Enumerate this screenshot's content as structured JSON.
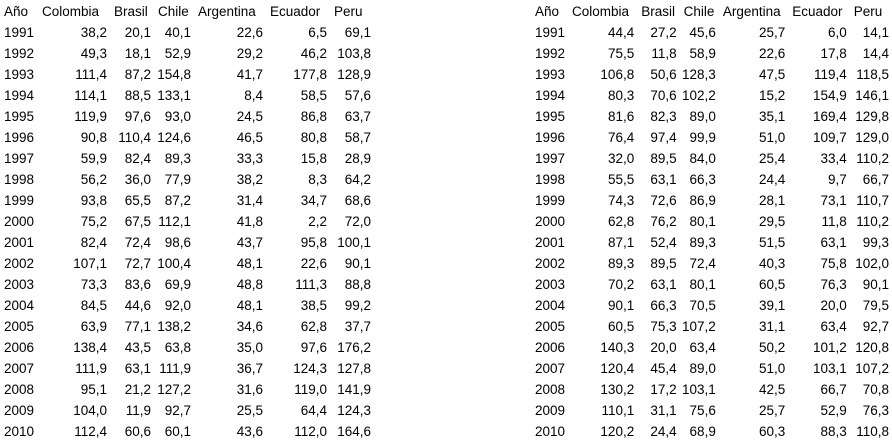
{
  "headers": [
    "Año",
    "Colombia",
    "Brasil",
    "Chile",
    "Argentina",
    "Ecuador",
    "Peru"
  ],
  "left_table": [
    [
      "1991",
      "38,2",
      "20,1",
      "40,1",
      "22,6",
      "6,5",
      "69,1"
    ],
    [
      "1992",
      "49,3",
      "18,1",
      "52,9",
      "29,2",
      "46,2",
      "103,8"
    ],
    [
      "1993",
      "111,4",
      "87,2",
      "154,8",
      "41,7",
      "177,8",
      "128,9"
    ],
    [
      "1994",
      "114,1",
      "88,5",
      "133,1",
      "8,4",
      "58,5",
      "57,6"
    ],
    [
      "1995",
      "119,9",
      "97,6",
      "93,0",
      "24,5",
      "86,8",
      "63,7"
    ],
    [
      "1996",
      "90,8",
      "110,4",
      "124,6",
      "46,5",
      "80,8",
      "58,7"
    ],
    [
      "1997",
      "59,9",
      "82,4",
      "89,3",
      "33,3",
      "15,8",
      "28,9"
    ],
    [
      "1998",
      "56,2",
      "36,0",
      "77,9",
      "38,2",
      "8,3",
      "64,2"
    ],
    [
      "1999",
      "93,8",
      "65,5",
      "87,2",
      "31,4",
      "34,7",
      "68,6"
    ],
    [
      "2000",
      "75,2",
      "67,5",
      "112,1",
      "41,8",
      "2,2",
      "72,0"
    ],
    [
      "2001",
      "82,4",
      "72,4",
      "98,6",
      "43,7",
      "95,8",
      "100,1"
    ],
    [
      "2002",
      "107,1",
      "72,7",
      "100,4",
      "48,1",
      "22,6",
      "90,1"
    ],
    [
      "2003",
      "73,3",
      "83,6",
      "69,9",
      "48,8",
      "111,3",
      "88,8"
    ],
    [
      "2004",
      "84,5",
      "44,6",
      "92,0",
      "48,1",
      "38,5",
      "99,2"
    ],
    [
      "2005",
      "63,9",
      "77,1",
      "138,2",
      "34,6",
      "62,8",
      "37,7"
    ],
    [
      "2006",
      "138,4",
      "43,5",
      "63,8",
      "35,0",
      "97,6",
      "176,2"
    ],
    [
      "2007",
      "111,9",
      "63,1",
      "111,9",
      "36,7",
      "124,3",
      "127,8"
    ],
    [
      "2008",
      "95,1",
      "21,2",
      "127,2",
      "31,6",
      "119,0",
      "141,9"
    ],
    [
      "2009",
      "104,0",
      "11,9",
      "92,7",
      "25,5",
      "64,4",
      "124,3"
    ],
    [
      "2010",
      "112,4",
      "60,6",
      "60,1",
      "43,6",
      "112,0",
      "164,6"
    ]
  ],
  "right_table": [
    [
      "1991",
      "44,4",
      "27,2",
      "45,6",
      "25,7",
      "6,0",
      "14,1"
    ],
    [
      "1992",
      "75,5",
      "11,8",
      "58,9",
      "22,6",
      "17,8",
      "14,4"
    ],
    [
      "1993",
      "106,8",
      "50,6",
      "128,3",
      "47,5",
      "119,4",
      "118,5"
    ],
    [
      "1994",
      "80,3",
      "70,6",
      "102,2",
      "15,2",
      "154,9",
      "146,1"
    ],
    [
      "1995",
      "81,6",
      "82,3",
      "89,0",
      "35,1",
      "169,4",
      "129,8"
    ],
    [
      "1996",
      "76,4",
      "97,4",
      "99,9",
      "51,0",
      "109,7",
      "129,0"
    ],
    [
      "1997",
      "32,0",
      "89,5",
      "84,0",
      "25,4",
      "33,4",
      "110,2"
    ],
    [
      "1998",
      "55,5",
      "63,1",
      "66,3",
      "24,4",
      "9,7",
      "66,7"
    ],
    [
      "1999",
      "74,3",
      "72,6",
      "86,9",
      "28,1",
      "73,1",
      "110,7"
    ],
    [
      "2000",
      "62,8",
      "76,2",
      "80,1",
      "29,5",
      "11,8",
      "110,2"
    ],
    [
      "2001",
      "87,1",
      "52,4",
      "89,3",
      "51,5",
      "63,1",
      "99,3"
    ],
    [
      "2002",
      "89,3",
      "89,5",
      "72,4",
      "40,3",
      "75,8",
      "102,0"
    ],
    [
      "2003",
      "70,2",
      "63,1",
      "80,1",
      "60,5",
      "76,3",
      "90,1"
    ],
    [
      "2004",
      "90,1",
      "66,3",
      "70,5",
      "39,1",
      "20,0",
      "79,5"
    ],
    [
      "2005",
      "60,5",
      "75,3",
      "107,2",
      "31,1",
      "63,4",
      "92,7"
    ],
    [
      "2006",
      "140,3",
      "20,0",
      "63,4",
      "50,2",
      "101,2",
      "120,8"
    ],
    [
      "2007",
      "120,4",
      "45,4",
      "89,0",
      "51,0",
      "103,1",
      "107,2"
    ],
    [
      "2008",
      "130,2",
      "17,2",
      "103,1",
      "42,5",
      "66,7",
      "70,8"
    ],
    [
      "2009",
      "110,1",
      "31,1",
      "75,6",
      "25,7",
      "52,9",
      "76,3"
    ],
    [
      "2010",
      "120,2",
      "24,4",
      "68,9",
      "60,3",
      "88,3",
      "110,8"
    ]
  ]
}
